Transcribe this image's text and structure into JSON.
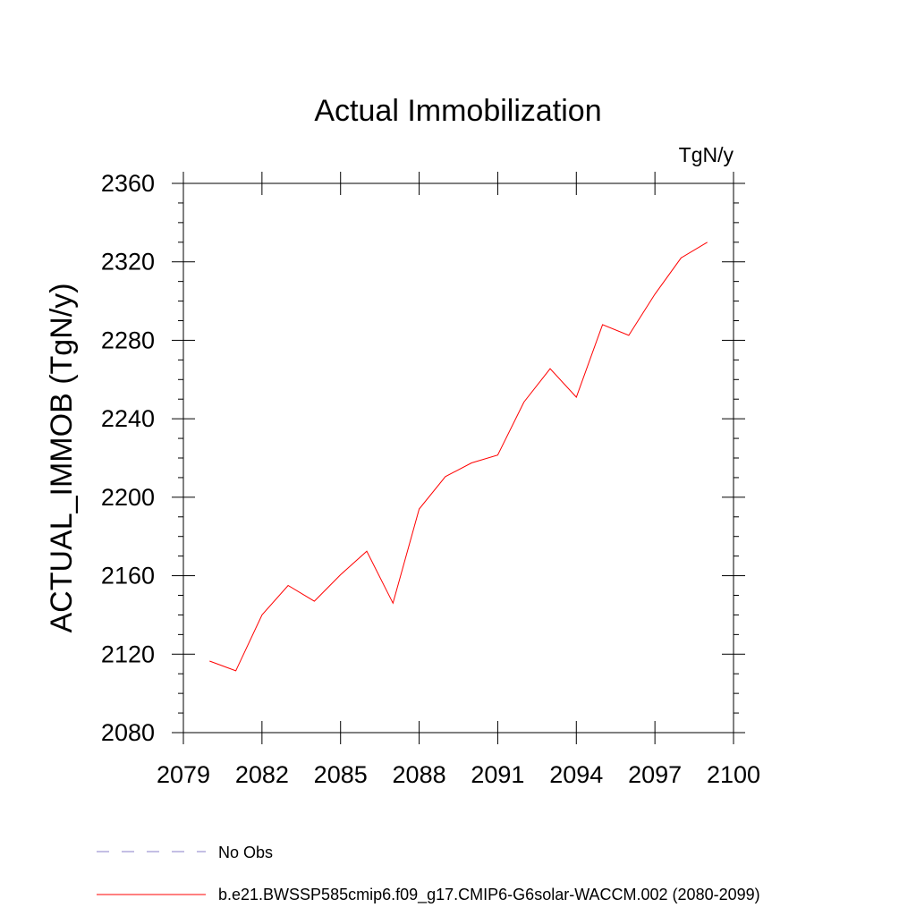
{
  "chart_data": {
    "type": "line",
    "title": "Actual Immobilization",
    "units_label": "TgN/y",
    "ylabel": "ACTUAL_IMMOB  (TgN/y)",
    "xlabel": "",
    "xlim": [
      2079,
      2100
    ],
    "ylim": [
      2080,
      2360
    ],
    "x_ticks": [
      2079,
      2082,
      2085,
      2088,
      2091,
      2094,
      2097,
      2100
    ],
    "y_ticks": [
      2080,
      2120,
      2160,
      2200,
      2240,
      2280,
      2320,
      2360
    ],
    "grid": false,
    "legend_placement": "bottom-left",
    "series": [
      {
        "name": "b.e21.BWSSP585cmip6.f09_g17.CMIP6-G6solar-WACCM.002 (2080-2099)",
        "color": "#ff0000",
        "x": [
          2080,
          2081,
          2082,
          2083,
          2084,
          2085,
          2086,
          2087,
          2088,
          2089,
          2090,
          2091,
          2092,
          2093,
          2094,
          2095,
          2096,
          2097,
          2098,
          2099
        ],
        "y": [
          2116.5,
          2111.5,
          2140,
          2155,
          2147,
          2160.5,
          2172.5,
          2146,
          2194,
          2210.5,
          2217.5,
          2221.5,
          2248.5,
          2265.5,
          2251,
          2288,
          2282.5,
          2303.5,
          2322,
          2330
        ]
      }
    ],
    "legend": [
      {
        "label": "No Obs",
        "color": "#8a7fc9",
        "style": "dashed"
      },
      {
        "label": "b.e21.BWSSP585cmip6.f09_g17.CMIP6-G6solar-WACCM.002 (2080-2099)",
        "color": "#ff0000",
        "style": "solid"
      }
    ]
  }
}
